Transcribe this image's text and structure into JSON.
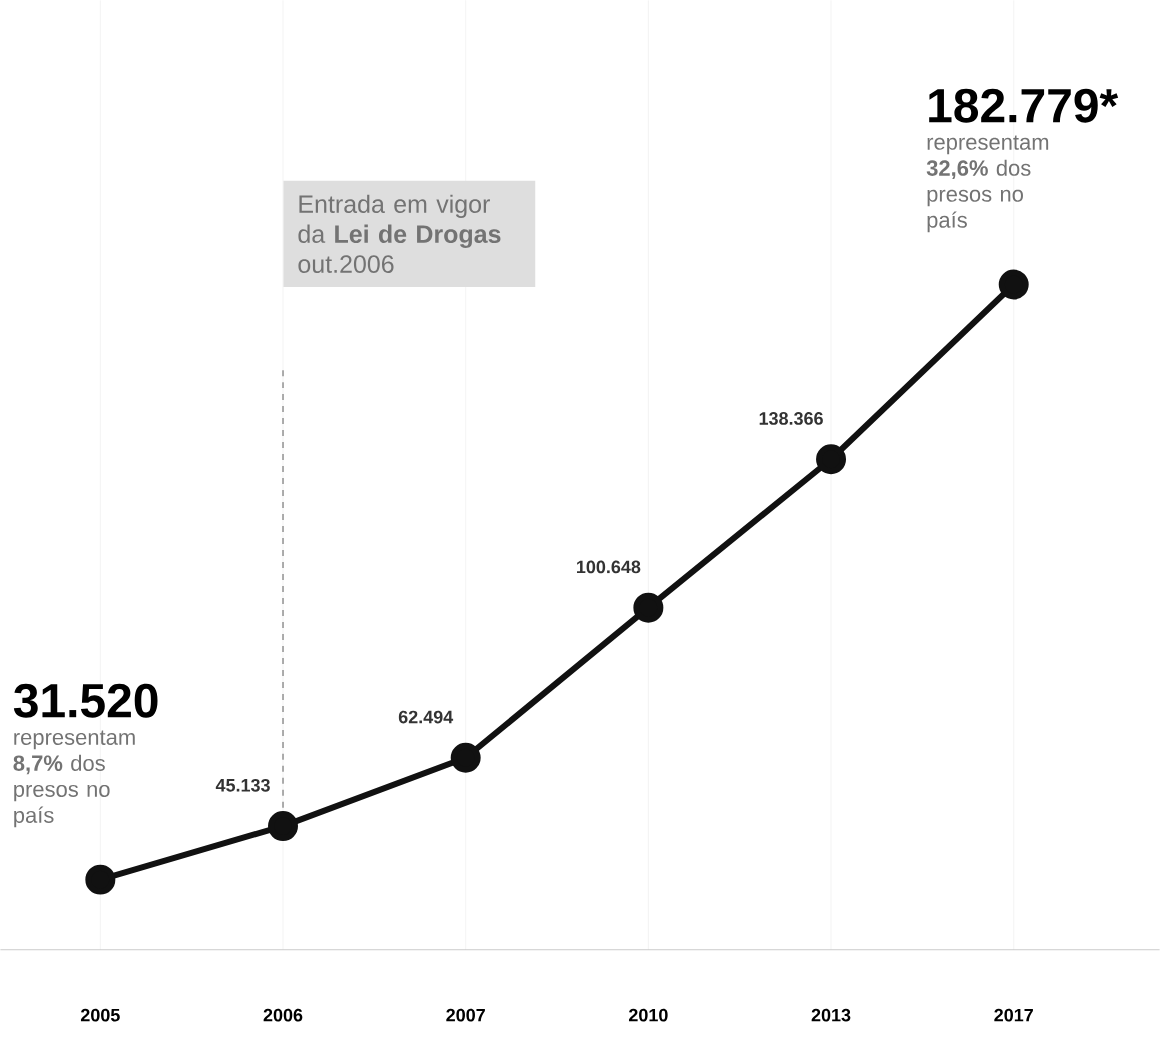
{
  "chart_data": {
    "type": "line",
    "categories": [
      "2005",
      "2006",
      "2007",
      "2010",
      "2013",
      "2017"
    ],
    "values": [
      31520,
      45133,
      62494,
      100648,
      138366,
      182779
    ],
    "value_labels": [
      "31.520",
      "45.133",
      "62.494",
      "100.648",
      "138.366",
      "182.779*"
    ],
    "color": "#111111",
    "marker": "circle",
    "line_style": "solid",
    "grid": "x",
    "ylim": [
      13700,
      255000
    ],
    "annotations": [
      {
        "text": "representam **8,7%** dos presos no país",
        "x": "2005",
        "y": 31520
      },
      {
        "text": "representam **32,6%** dos presos no país",
        "x": "2017",
        "y": 182779
      }
    ],
    "ref_lines": [
      {
        "axis": "x",
        "value": "2006",
        "label": "Entrada em vigor da **Lei de Drogas** out.2006",
        "color": "#999999",
        "line_style": "dashed"
      }
    ]
  }
}
